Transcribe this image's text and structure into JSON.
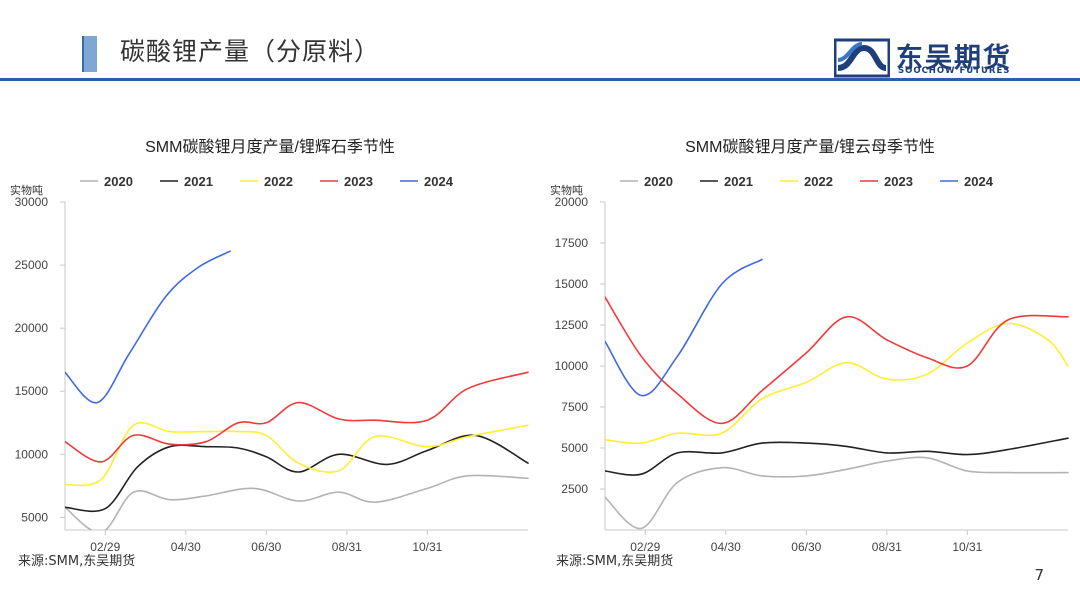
{
  "header": {
    "title": "碳酸锂产量（分原料）",
    "logo_cn": "东吴期货",
    "logo_en": "SOOCHOW FUTURES"
  },
  "page_number": "7",
  "series_colors": {
    "2020": "#b3b3b3",
    "2021": "#222222",
    "2022": "#ffee33",
    "2023": "#f03a3a",
    "2024": "#4169e1"
  },
  "chart_data": [
    {
      "type": "line",
      "title": "SMM碳酸锂月度产量/锂辉石季节性",
      "ylabel": "实物吨",
      "ylim": [
        4000,
        30000
      ],
      "yticks": [
        5000,
        10000,
        15000,
        20000,
        25000,
        30000
      ],
      "xlim": [
        1,
        12.5
      ],
      "xticks": [
        {
          "x": 2,
          "label": "02/29"
        },
        {
          "x": 4,
          "label": "04/30"
        },
        {
          "x": 6,
          "label": "06/30"
        },
        {
          "x": 8,
          "label": "08/31"
        },
        {
          "x": 10,
          "label": "10/31"
        }
      ],
      "legend_position": "top",
      "source": "来源:SMM,东吴期货",
      "series": [
        {
          "name": "2020",
          "x": [
            1,
            1.9,
            2.7,
            3.6,
            4.5,
            5.7,
            6.8,
            7.8,
            8.7,
            10,
            11,
            12.5
          ],
          "values": [
            5800,
            3800,
            7000,
            6400,
            6700,
            7300,
            6300,
            7000,
            6200,
            7300,
            8300,
            8100
          ]
        },
        {
          "name": "2021",
          "x": [
            1,
            2,
            2.8,
            3.6,
            4.5,
            5.3,
            6,
            6.8,
            7.8,
            9,
            10,
            11.2,
            12.5
          ],
          "values": [
            5800,
            5700,
            9000,
            10600,
            10600,
            10500,
            9800,
            8600,
            10000,
            9200,
            10300,
            11500,
            9300
          ]
        },
        {
          "name": "2022",
          "x": [
            1,
            1.9,
            2.7,
            3.6,
            4.5,
            5.3,
            6,
            6.8,
            7.8,
            8.7,
            10,
            11,
            12.5
          ],
          "values": [
            7600,
            8000,
            12300,
            11800,
            11800,
            11800,
            11500,
            9300,
            8700,
            11400,
            10600,
            11400,
            12300
          ]
        },
        {
          "name": "2023",
          "x": [
            1,
            1.9,
            2.7,
            3.6,
            4.5,
            5.3,
            6,
            6.8,
            7.8,
            8.7,
            10,
            11,
            12.5
          ],
          "values": [
            11000,
            9400,
            11500,
            10800,
            11000,
            12500,
            12500,
            14100,
            12800,
            12700,
            12700,
            15200,
            16500
          ]
        },
        {
          "name": "2024",
          "x": [
            1,
            1.8,
            2.6,
            3.5,
            4.3,
            5.1
          ],
          "values": [
            16500,
            14100,
            18000,
            22500,
            24800,
            26100
          ]
        }
      ]
    },
    {
      "type": "line",
      "title": "SMM碳酸锂月度产量/锂云母季节性",
      "ylabel": "实物吨",
      "ylim": [
        0,
        20000
      ],
      "yticks": [
        2500,
        5000,
        7500,
        10000,
        12500,
        15000,
        17500,
        20000
      ],
      "xlim": [
        1,
        12.5
      ],
      "xticks": [
        {
          "x": 2,
          "label": "02/29"
        },
        {
          "x": 4,
          "label": "04/30"
        },
        {
          "x": 6,
          "label": "06/30"
        },
        {
          "x": 8,
          "label": "08/31"
        },
        {
          "x": 10,
          "label": "10/31"
        }
      ],
      "legend_position": "top",
      "source": "来源:SMM,东吴期货",
      "series": [
        {
          "name": "2020",
          "x": [
            1,
            1.9,
            2.8,
            3.9,
            4.9,
            6,
            7,
            8,
            9,
            10,
            11,
            12.5
          ],
          "values": [
            2000,
            100,
            2900,
            3800,
            3300,
            3300,
            3700,
            4200,
            4400,
            3600,
            3500,
            3500
          ]
        },
        {
          "name": "2021",
          "x": [
            1,
            1.9,
            2.8,
            3.9,
            4.9,
            6,
            7,
            8,
            9,
            10,
            11,
            12.5
          ],
          "values": [
            3600,
            3400,
            4700,
            4700,
            5300,
            5300,
            5100,
            4700,
            4800,
            4600,
            4900,
            5600
          ]
        },
        {
          "name": "2022",
          "x": [
            1,
            1.9,
            2.8,
            3.9,
            4.9,
            6,
            7,
            8,
            9,
            10,
            11,
            12,
            12.5
          ],
          "values": [
            5500,
            5300,
            5900,
            5900,
            8000,
            9000,
            10200,
            9200,
            9500,
            11400,
            12600,
            11600,
            10000
          ]
        },
        {
          "name": "2023",
          "x": [
            1,
            1.9,
            2.8,
            3.9,
            4.9,
            6,
            7,
            8,
            9,
            10,
            11,
            12.5
          ],
          "values": [
            14200,
            10600,
            8300,
            6500,
            8500,
            10800,
            13000,
            11600,
            10500,
            10000,
            12800,
            13000
          ]
        },
        {
          "name": "2024",
          "x": [
            1,
            1.9,
            2.8,
            3.9,
            4.9
          ],
          "values": [
            11500,
            8200,
            10600,
            15000,
            16500
          ]
        }
      ]
    }
  ]
}
